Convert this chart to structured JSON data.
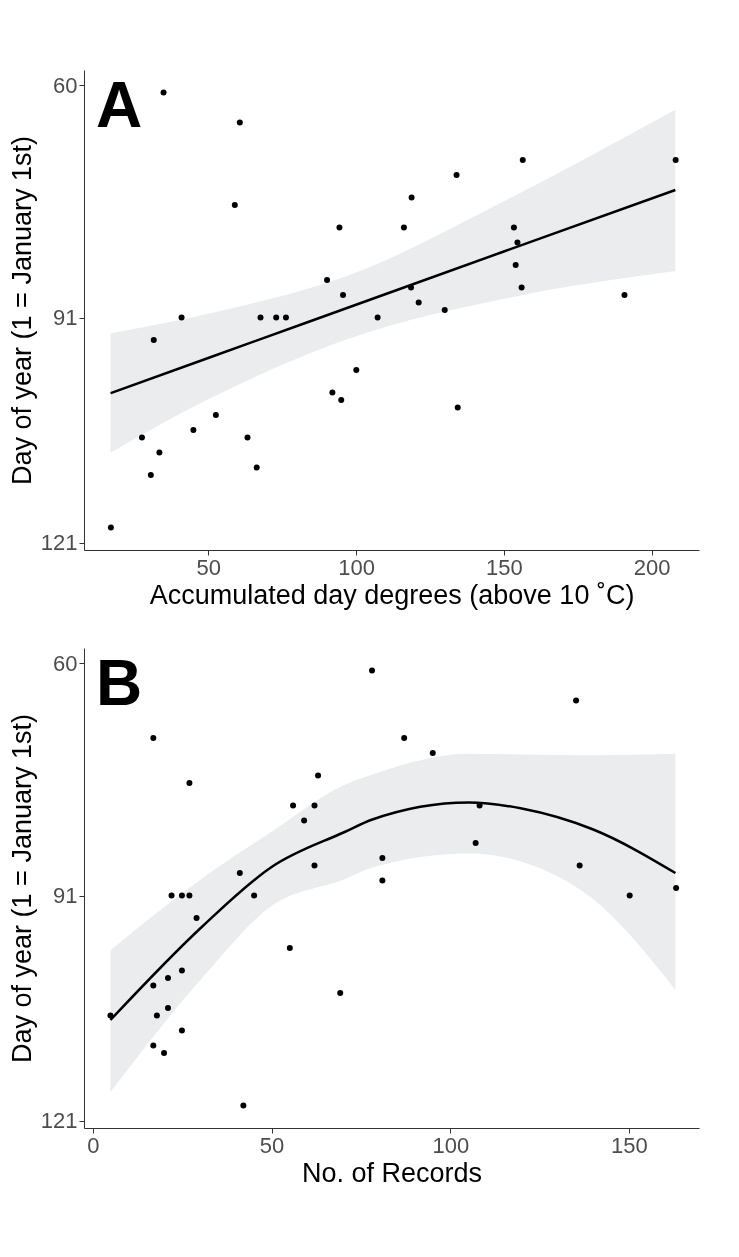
{
  "chart_data": [
    {
      "type": "scatter",
      "title": "A",
      "xlabel": "Accumulated day degrees (above 10 ˚C)",
      "ylabel": "Day of year (1 = January 1st)",
      "xlim": [
        8,
        216
      ],
      "ylim": [
        122,
        58
      ],
      "xticks": [
        50,
        100,
        150,
        200
      ],
      "yticks": [
        60,
        91,
        121
      ],
      "grid": false,
      "marker": "circle",
      "series": [
        {
          "color": "#000000",
          "x": [
            34.9,
            60.7,
            59,
            94.4,
            90.2,
            95.6,
            41,
            67.7,
            73,
            76.3,
            107.3,
            31.6,
            100.1,
            92,
            95,
            52.6,
            45,
            27.6,
            63.3,
            33.5,
            66.4,
            30.6,
            17.1,
            156.4,
            208.1,
            134,
            118.8,
            116.2,
            153.4,
            154.6,
            154,
            118.6,
            156,
            190.8,
            121.2,
            130,
            134.4
          ],
          "values": [
            61,
            65,
            76,
            79,
            86,
            88,
            91,
            91,
            91,
            91,
            91,
            94,
            98,
            101,
            102,
            104,
            106,
            107,
            107,
            109,
            111,
            112,
            119,
            70,
            70,
            72,
            75,
            79,
            79,
            81,
            84,
            87,
            87,
            88,
            89,
            90,
            103
          ]
        },
        {
          "type": "line",
          "marker": "none",
          "color": "#000000",
          "x": [
            17,
            50,
            100,
            150,
            208
          ],
          "values": [
            101.1,
            96.4,
            89.3,
            82.2,
            74
          ],
          "lower": [
            109,
            101.9,
            93.5,
            88.5,
            84.8
          ],
          "upper": [
            93.1,
            90.5,
            85,
            75.5,
            63.3
          ]
        }
      ]
    },
    {
      "type": "scatter",
      "title": "B",
      "xlabel": "No. of Records",
      "ylabel": "Day of year (1 = January 1st)",
      "xlim": [
        -2.5,
        169.6
      ],
      "ylim": [
        122,
        58
      ],
      "xticks": [
        0,
        50,
        100,
        150
      ],
      "yticks": [
        60,
        91,
        121
      ],
      "grid": false,
      "marker": "circle",
      "series": [
        {
          "color": "#000000",
          "x": [
            78.1,
            16.9,
            27,
            63,
            56,
            62,
            59.1,
            41.1,
            62,
            81,
            81,
            22,
            24.9,
            27,
            45.1,
            29,
            55.1,
            24.9,
            21,
            16.9,
            69.2,
            21,
            4.9,
            17.9,
            24.9,
            16.9,
            19.9,
            42.1,
            87.1,
            135.2,
            95.1,
            108.2,
            107.1,
            136.2,
            150.2,
            163.2
          ],
          "values": [
            61,
            70,
            76,
            75,
            79,
            79,
            81,
            88,
            87,
            86,
            89,
            91,
            91,
            91,
            91,
            94,
            98,
            101,
            102,
            103,
            104,
            106,
            107,
            107,
            109,
            111,
            112,
            119,
            70,
            65,
            72,
            79,
            84,
            87,
            91,
            90
          ]
        },
        {
          "type": "line",
          "marker": "none",
          "color": "#000000",
          "x": [
            4.9,
            30.9,
            50,
            70.6,
            78,
            105.2,
            120,
            140,
            163
          ],
          "values": [
            107.6,
            95,
            87.2,
            82.5,
            80.9,
            78.6,
            79.4,
            82.2,
            88
          ],
          "lower": [
            117.2,
            101.8,
            92.4,
            88.8,
            87.3,
            85.4,
            86.5,
            91.5,
            103.6
          ],
          "upper": [
            98.3,
            88.6,
            82.5,
            76.2,
            74.9,
            72.1,
            72.2,
            72.3,
            72.1
          ]
        }
      ]
    }
  ]
}
